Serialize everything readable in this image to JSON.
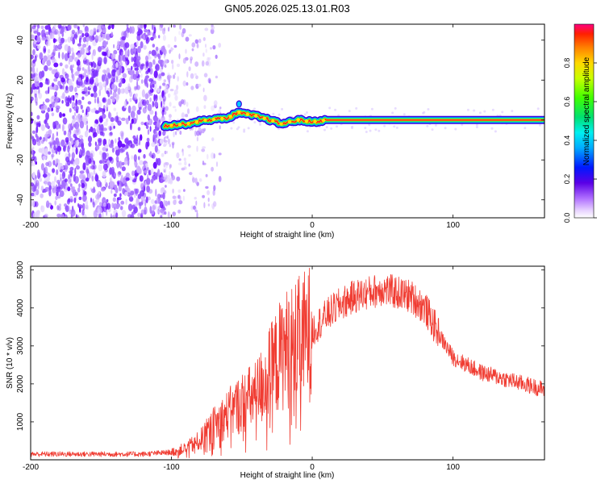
{
  "chart_data": [
    {
      "type": "heatmap",
      "title": "GN05.2026.025.13.01.R03",
      "xlabel": "Height of straight line (km)",
      "ylabel": "Frequency (Hz)",
      "xlim": [
        -200,
        165
      ],
      "ylim": [
        -49,
        48
      ],
      "xticks": [
        -200,
        -100,
        0,
        100
      ],
      "yticks": [
        -40,
        -20,
        0,
        20,
        40
      ],
      "colorbar": {
        "label": "Normalized spectral amplitude",
        "range": [
          0,
          1
        ],
        "ticks": [
          0.0,
          0.2,
          0.4,
          0.6,
          0.8
        ]
      },
      "signal_track": {
        "description_points_km_hz": [
          [
            -105,
            -3
          ],
          [
            -90,
            -2
          ],
          [
            -75,
            0
          ],
          [
            -60,
            1
          ],
          [
            -52,
            4
          ],
          [
            -48,
            3
          ],
          [
            -40,
            2
          ],
          [
            -30,
            0
          ],
          [
            -22,
            -2
          ],
          [
            -10,
            0
          ],
          [
            0,
            -1
          ],
          [
            10,
            0
          ],
          [
            165,
            0
          ]
        ]
      }
    },
    {
      "type": "line",
      "xlabel": "Height of straight line (km)",
      "ylabel": "SNR (10 * v/v)",
      "xlim": [
        -200,
        165
      ],
      "ylim": [
        0,
        5100
      ],
      "xticks": [
        -200,
        -100,
        0,
        100
      ],
      "yticks": [
        1000,
        2000,
        3000,
        4000,
        5000
      ],
      "series": [
        {
          "name": "SNR",
          "color": "#f03c32",
          "envelope_x": [
            -200,
            -180,
            -160,
            -140,
            -120,
            -100,
            -90,
            -80,
            -70,
            -60,
            -50,
            -40,
            -30,
            -20,
            -10,
            0,
            10,
            20,
            30,
            40,
            50,
            60,
            70,
            80,
            90,
            100,
            110,
            120,
            130,
            140,
            150,
            165
          ],
          "envelope_y": [
            150,
            150,
            150,
            150,
            150,
            200,
            300,
            500,
            900,
            1200,
            1500,
            1700,
            2300,
            2900,
            3100,
            3400,
            3800,
            4100,
            4300,
            4400,
            4500,
            4400,
            4300,
            4000,
            3300,
            2700,
            2500,
            2300,
            2200,
            2100,
            2000,
            1850
          ]
        }
      ]
    }
  ]
}
